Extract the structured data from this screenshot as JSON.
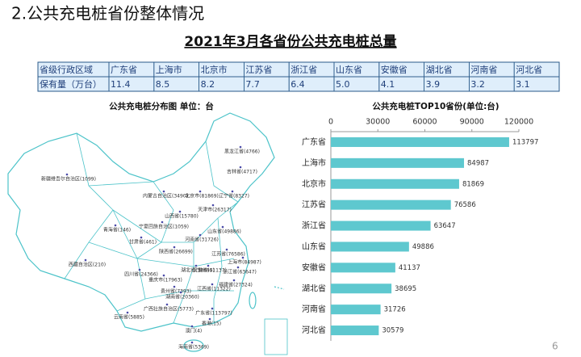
{
  "heading": "2.公共充电桩省份整体情况",
  "title": "2021年3月各省份公共充电桩总量",
  "table": {
    "rows": [
      [
        "省级行政区域",
        "广东省",
        "上海市",
        "北京市",
        "江苏省",
        "浙江省",
        "山东省",
        "安徽省",
        "湖北省",
        "河南省",
        "河北省"
      ],
      [
        "保有量（万台）",
        "11.4",
        "8.5",
        "8.2",
        "7.7",
        "6.4",
        "5.0",
        "4.1",
        "3.9",
        "3.2",
        "3.1"
      ]
    ]
  },
  "map": {
    "title": "公共充电桩分布图   单位：台",
    "labels": [
      "黑龙江省(4766)",
      "吉林省(4717)",
      "辽宁省(8327)",
      "内蒙古自治区(3490)",
      "北京市(81869)",
      "天津市(26317)",
      "新疆维吾尔自治区(1099)",
      "山西省(15780)",
      "宁夏回族自治区(1059)",
      "山东省(49886)",
      "青海省(146)",
      "甘肃省(461)",
      "河南省(31726)",
      "陕西省(26699)",
      "江苏省(76586)",
      "上海市(84987)",
      "西藏自治区(210)",
      "安徽省(41137)",
      "浙江省(63647)",
      "湖北省(38695)",
      "四川省(24366)",
      "重庆市(17963)",
      "福建省(27324)",
      "江西省(11322)",
      "贵州省(7393)",
      "湖南省(20360)",
      "广西壮族自治区(5773)",
      "广东省(113797)",
      "云南省(5885)",
      "香港(15)",
      "澳门(4)",
      "海南省(5369)"
    ]
  },
  "chart_data": {
    "type": "hbar",
    "title": "公共充电桩TOP10省份(单位:台)",
    "categories": [
      "广东省",
      "上海市",
      "北京市",
      "江苏省",
      "浙江省",
      "山东省",
      "安徽省",
      "湖北省",
      "河南省",
      "河北省"
    ],
    "values": [
      113797,
      84987,
      81869,
      76586,
      63647,
      49886,
      41137,
      38695,
      31726,
      30579
    ],
    "color": "#5ec8cf",
    "xlim": [
      0,
      120000
    ],
    "xticks": [
      0,
      30000,
      60000,
      90000,
      120000
    ]
  },
  "page_number": "6"
}
